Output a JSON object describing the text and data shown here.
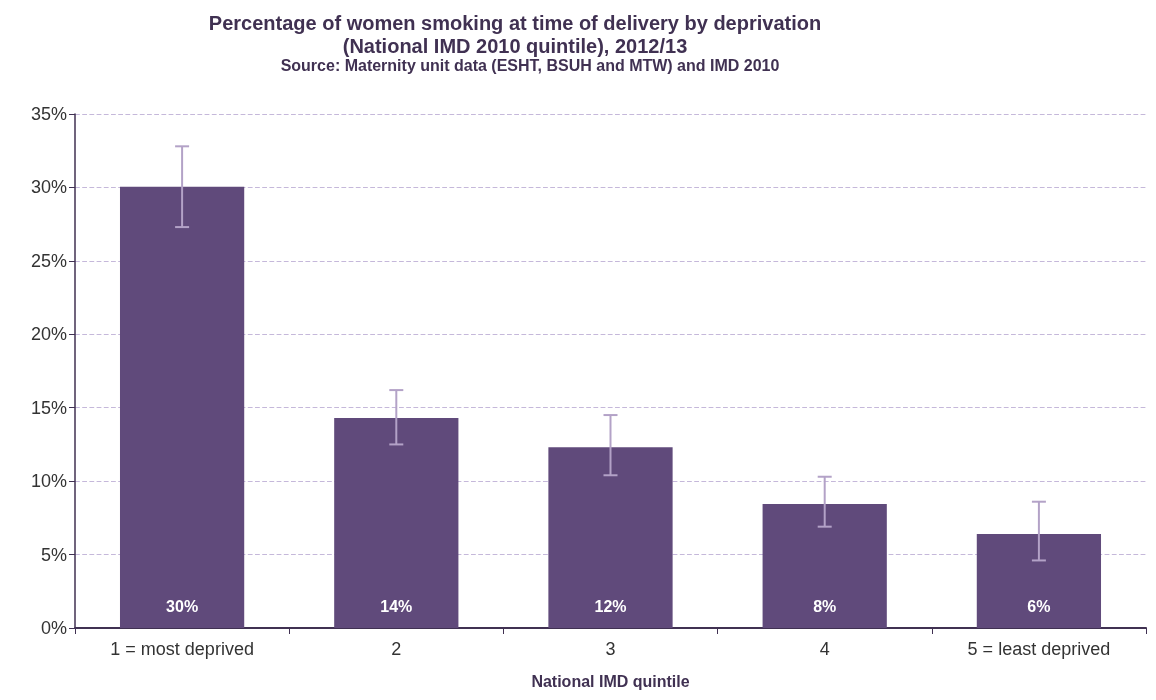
{
  "chart_data": {
    "type": "bar",
    "title": "Percentage of women smoking at time of delivery by deprivation\n(National IMD 2010 quintile), 2012/13",
    "subtitle": "Source: Maternity unit data (ESHT, BSUH and MTW) and IMD 2010",
    "xlabel": "National IMD quintile",
    "categories": [
      "1 = most deprived",
      "2",
      "3",
      "4",
      "5 = least deprived"
    ],
    "values": [
      30.05,
      14.3,
      12.3,
      8.45,
      6.4
    ],
    "value_labels": [
      "30%",
      "14%",
      "12%",
      "8%",
      "6%"
    ],
    "errors": [
      [
        27.3,
        32.8
      ],
      [
        12.5,
        16.2
      ],
      [
        10.4,
        14.5
      ],
      [
        6.9,
        10.3
      ],
      [
        4.6,
        8.6
      ]
    ],
    "color": "#604a7b",
    "ylim": [
      0,
      35
    ],
    "yticks": [
      {
        "value": 0,
        "label": "0%"
      },
      {
        "value": 5,
        "label": "5%"
      },
      {
        "value": 10,
        "label": "10%"
      },
      {
        "value": 15,
        "label": "15%"
      },
      {
        "value": 20,
        "label": "20%"
      },
      {
        "value": 25,
        "label": "25%"
      },
      {
        "value": 30,
        "label": "30%"
      },
      {
        "value": 35,
        "label": "35%"
      }
    ],
    "grid": "y"
  }
}
